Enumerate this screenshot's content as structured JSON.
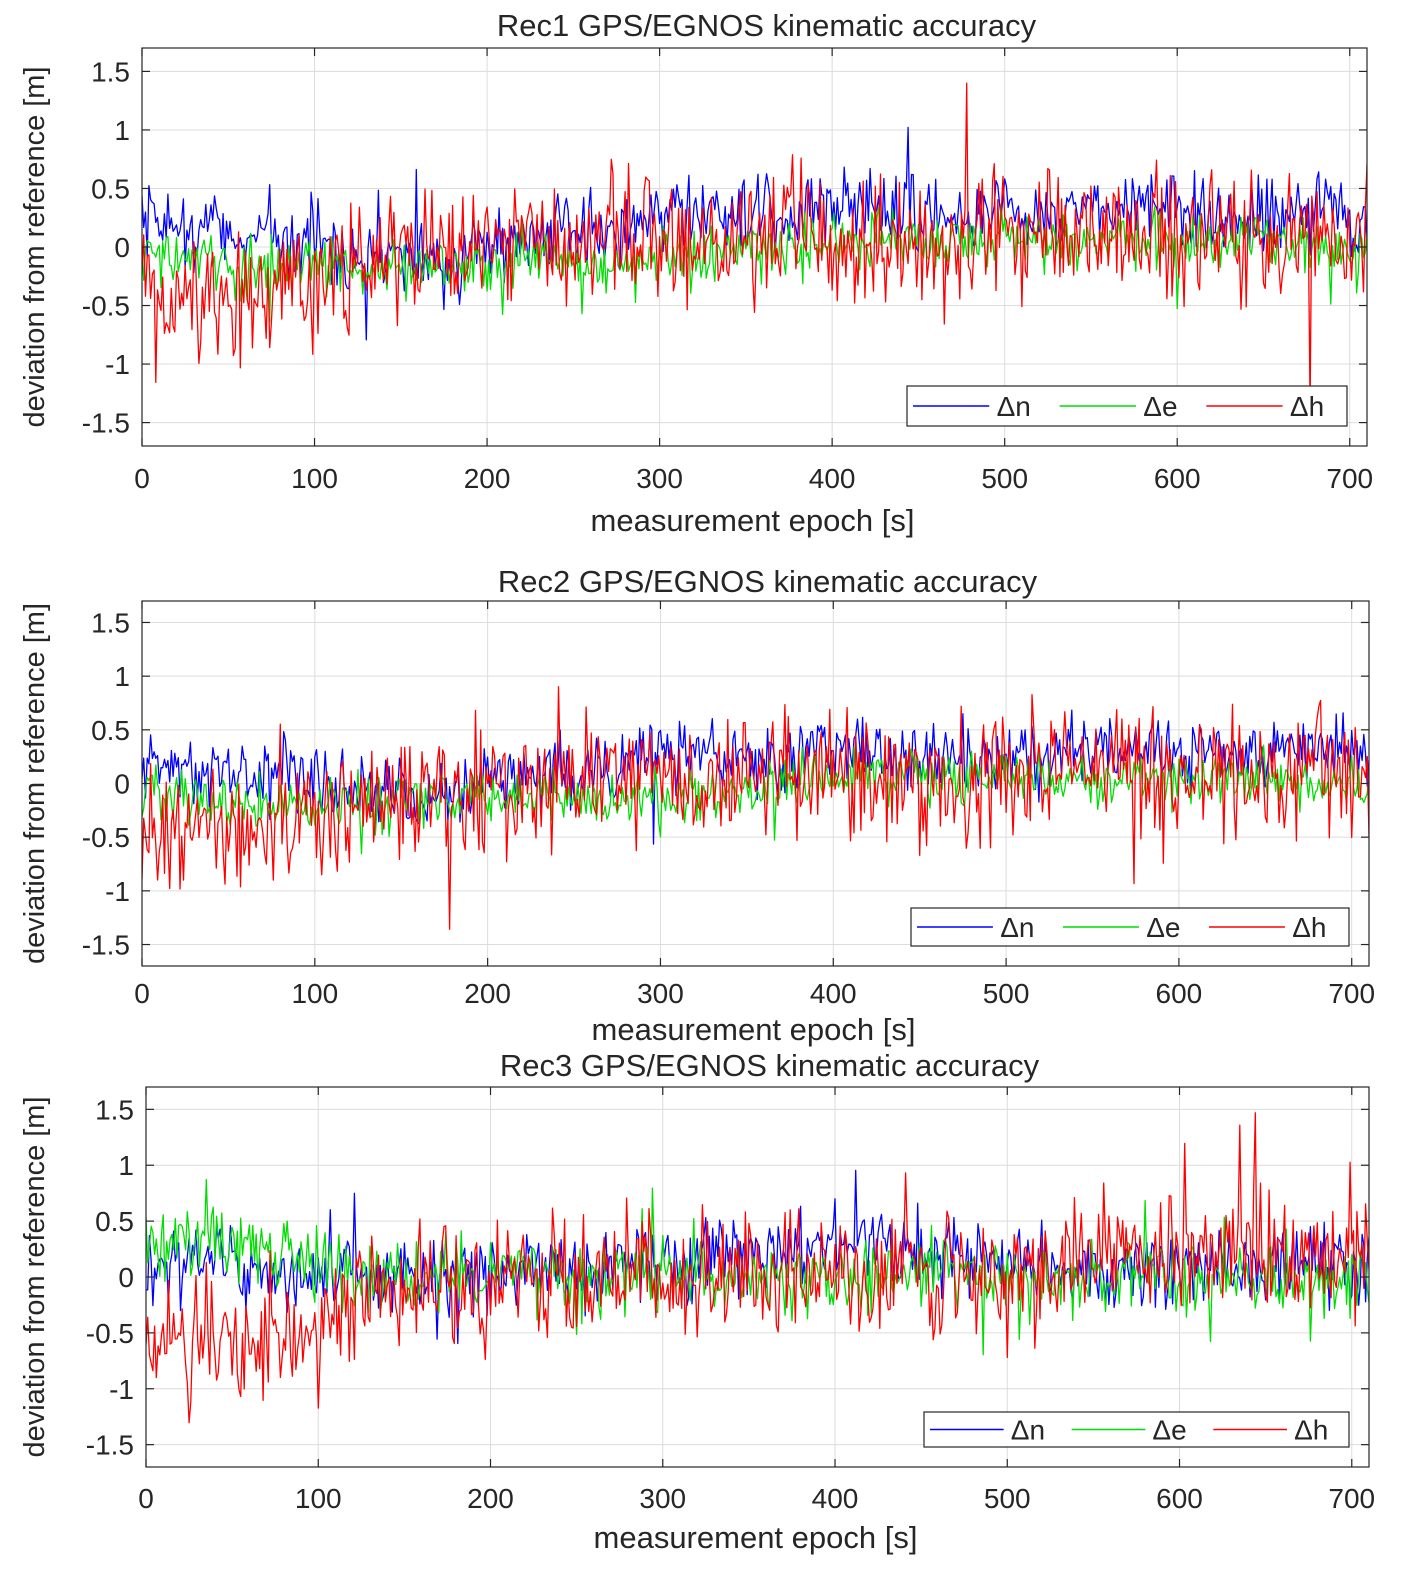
{
  "chart_data": [
    {
      "type": "line",
      "title": "Rec1 GPS/EGNOS kinematic accuracy",
      "xlabel": "measurement epoch [s]",
      "ylabel": "deviation from reference [m]",
      "xlim": [
        0,
        710
      ],
      "ylim": [
        -1.7,
        1.7
      ],
      "xticks": [
        0,
        100,
        200,
        300,
        400,
        500,
        600,
        700
      ],
      "yticks": [
        1.5,
        1,
        0.5,
        0,
        -0.5,
        -1,
        -1.5
      ],
      "ytick_labels": [
        "1.5",
        "1",
        "0.5",
        "0",
        "-0.5",
        "-1",
        "-1.5"
      ],
      "grid": true,
      "legend_position": "bottom-right",
      "series": [
        {
          "name": "Δn",
          "color": "#0000ff",
          "x": [
            0,
            20,
            40,
            60,
            80,
            100,
            120,
            140,
            160,
            180,
            200,
            220,
            240,
            260,
            280,
            300,
            320,
            340,
            360,
            380,
            400,
            420,
            440,
            460,
            480,
            500,
            520,
            540,
            560,
            580,
            600,
            620,
            640,
            660,
            680,
            700,
            710
          ],
          "values": [
            0.15,
            0.2,
            0.15,
            0.1,
            0.1,
            0.05,
            0.0,
            -0.05,
            -0.1,
            -0.1,
            0.0,
            0.1,
            0.15,
            0.1,
            0.2,
            0.3,
            0.3,
            0.25,
            0.2,
            0.35,
            0.3,
            0.3,
            0.3,
            0.25,
            0.25,
            0.3,
            0.25,
            0.3,
            0.3,
            0.35,
            0.3,
            0.3,
            0.25,
            0.3,
            0.35,
            0.3,
            0.2
          ]
        },
        {
          "name": "Δe",
          "color": "#00dd00",
          "x": [
            0,
            20,
            40,
            60,
            80,
            100,
            120,
            140,
            160,
            180,
            200,
            220,
            240,
            260,
            280,
            300,
            320,
            340,
            360,
            380,
            400,
            420,
            440,
            460,
            480,
            500,
            520,
            540,
            560,
            580,
            600,
            620,
            640,
            660,
            680,
            700,
            710
          ],
          "values": [
            -0.05,
            -0.1,
            -0.15,
            -0.2,
            -0.15,
            -0.15,
            -0.2,
            -0.2,
            -0.15,
            -0.15,
            -0.15,
            -0.1,
            -0.1,
            -0.15,
            -0.15,
            -0.1,
            -0.1,
            -0.05,
            -0.05,
            0.0,
            0.05,
            0.05,
            0.1,
            0.05,
            0.05,
            0.1,
            0.05,
            0.05,
            0.05,
            0.05,
            0.0,
            0.05,
            0.05,
            0.05,
            0.0,
            0.0,
            -0.05
          ]
        },
        {
          "name": "Δh",
          "color": "#ff0000",
          "x": [
            0,
            20,
            40,
            60,
            80,
            100,
            120,
            140,
            160,
            180,
            200,
            220,
            240,
            260,
            280,
            300,
            320,
            340,
            360,
            380,
            400,
            420,
            440,
            460,
            480,
            500,
            520,
            540,
            560,
            580,
            600,
            620,
            640,
            660,
            680,
            700,
            710
          ],
          "values": [
            -0.45,
            -0.5,
            -0.4,
            -0.4,
            -0.35,
            -0.3,
            -0.2,
            -0.1,
            -0.05,
            -0.1,
            -0.05,
            0.0,
            0.05,
            0.0,
            0.05,
            0.1,
            0.05,
            0.05,
            0.05,
            0.15,
            0.1,
            0.05,
            0.05,
            0.0,
            0.05,
            0.1,
            0.1,
            0.15,
            0.1,
            0.15,
            0.15,
            0.1,
            0.1,
            0.05,
            0.1,
            0.05,
            0.05
          ]
        }
      ]
    },
    {
      "type": "line",
      "title": "Rec2 GPS/EGNOS kinematic accuracy",
      "xlabel": "measurement epoch [s]",
      "ylabel": "deviation from reference [m]",
      "xlim": [
        0,
        710
      ],
      "ylim": [
        -1.7,
        1.7
      ],
      "xticks": [
        0,
        100,
        200,
        300,
        400,
        500,
        600,
        700
      ],
      "yticks": [
        1.5,
        1,
        0.5,
        0,
        -0.5,
        -1,
        -1.5
      ],
      "ytick_labels": [
        "1.5",
        "1",
        "0.5",
        "0",
        "-0.5",
        "-1",
        "-1.5"
      ],
      "grid": true,
      "legend_position": "bottom-right",
      "series": [
        {
          "name": "Δn",
          "color": "#0000ff",
          "x": [
            0,
            20,
            40,
            60,
            80,
            100,
            120,
            140,
            160,
            180,
            200,
            220,
            240,
            260,
            280,
            300,
            320,
            340,
            360,
            380,
            400,
            420,
            440,
            460,
            480,
            500,
            520,
            540,
            560,
            580,
            600,
            620,
            640,
            660,
            680,
            700,
            710
          ],
          "values": [
            0.15,
            0.2,
            0.15,
            0.1,
            0.1,
            0.05,
            0.0,
            -0.05,
            -0.1,
            -0.1,
            0.0,
            0.1,
            0.15,
            0.1,
            0.2,
            0.3,
            0.3,
            0.25,
            0.2,
            0.35,
            0.3,
            0.3,
            0.3,
            0.25,
            0.25,
            0.3,
            0.25,
            0.3,
            0.3,
            0.35,
            0.3,
            0.3,
            0.25,
            0.3,
            0.35,
            0.3,
            0.2
          ]
        },
        {
          "name": "Δe",
          "color": "#00dd00",
          "x": [
            0,
            20,
            40,
            60,
            80,
            100,
            120,
            140,
            160,
            180,
            200,
            220,
            240,
            260,
            280,
            300,
            320,
            340,
            360,
            380,
            400,
            420,
            440,
            460,
            480,
            500,
            520,
            540,
            560,
            580,
            600,
            620,
            640,
            660,
            680,
            700,
            710
          ],
          "values": [
            -0.05,
            -0.1,
            -0.15,
            -0.2,
            -0.15,
            -0.15,
            -0.2,
            -0.2,
            -0.15,
            -0.15,
            -0.15,
            -0.1,
            -0.1,
            -0.15,
            -0.15,
            -0.1,
            -0.1,
            -0.05,
            -0.05,
            0.0,
            0.05,
            0.05,
            0.1,
            0.05,
            0.05,
            0.1,
            0.05,
            0.05,
            0.05,
            0.05,
            0.0,
            0.05,
            0.05,
            0.05,
            0.0,
            0.0,
            -0.05
          ]
        },
        {
          "name": "Δh",
          "color": "#ff0000",
          "x": [
            0,
            20,
            40,
            60,
            80,
            100,
            120,
            140,
            160,
            180,
            200,
            220,
            240,
            260,
            280,
            300,
            320,
            340,
            360,
            380,
            400,
            420,
            440,
            460,
            480,
            500,
            520,
            540,
            560,
            580,
            600,
            620,
            640,
            660,
            680,
            700,
            710
          ],
          "values": [
            -0.45,
            -0.5,
            -0.4,
            -0.4,
            -0.35,
            -0.3,
            -0.2,
            -0.1,
            -0.05,
            -0.1,
            -0.05,
            0.0,
            0.05,
            0.0,
            0.05,
            0.1,
            0.05,
            0.05,
            0.05,
            0.15,
            0.1,
            0.05,
            0.05,
            0.0,
            0.05,
            0.1,
            0.1,
            0.15,
            0.1,
            0.15,
            0.15,
            0.1,
            0.1,
            0.05,
            0.1,
            0.05,
            0.05
          ]
        }
      ]
    },
    {
      "type": "line",
      "title": "Rec3 GPS/EGNOS kinematic accuracy",
      "xlabel": "measurement epoch [s]",
      "ylabel": "deviation from reference [m]",
      "xlim": [
        0,
        710
      ],
      "ylim": [
        -1.7,
        1.7
      ],
      "xticks": [
        0,
        100,
        200,
        300,
        400,
        500,
        600,
        700
      ],
      "yticks": [
        1.5,
        1,
        0.5,
        0,
        -0.5,
        -1,
        -1.5
      ],
      "ytick_labels": [
        "1.5",
        "1",
        "0.5",
        "0",
        "-0.5",
        "-1",
        "-1.5"
      ],
      "grid": true,
      "legend_position": "bottom-right",
      "series": [
        {
          "name": "Δn",
          "color": "#0000ff",
          "x": [
            0,
            20,
            40,
            60,
            80,
            100,
            120,
            140,
            160,
            180,
            200,
            220,
            240,
            260,
            280,
            300,
            320,
            340,
            360,
            380,
            400,
            420,
            440,
            460,
            480,
            500,
            520,
            540,
            560,
            580,
            600,
            620,
            640,
            660,
            680,
            700,
            710
          ],
          "values": [
            0.05,
            0.1,
            0.15,
            0.05,
            0.0,
            0.0,
            0.05,
            0.0,
            -0.05,
            0.0,
            0.05,
            0.1,
            0.1,
            0.1,
            0.15,
            0.15,
            0.2,
            0.2,
            0.25,
            0.25,
            0.3,
            0.3,
            0.25,
            0.25,
            0.2,
            0.15,
            0.1,
            0.1,
            0.1,
            0.05,
            0.05,
            0.05,
            0.1,
            0.1,
            0.05,
            0.1,
            0.1
          ]
        },
        {
          "name": "Δe",
          "color": "#00dd00",
          "x": [
            0,
            20,
            40,
            60,
            80,
            100,
            120,
            140,
            160,
            180,
            200,
            220,
            240,
            260,
            280,
            300,
            320,
            340,
            360,
            380,
            400,
            420,
            440,
            460,
            480,
            500,
            520,
            540,
            560,
            580,
            600,
            620,
            640,
            660,
            680,
            700,
            710
          ],
          "values": [
            0.3,
            0.3,
            0.35,
            0.3,
            0.25,
            0.1,
            0.05,
            0.0,
            0.0,
            0.05,
            0.05,
            0.05,
            0.0,
            0.0,
            0.0,
            0.0,
            0.0,
            -0.05,
            0.0,
            0.0,
            0.0,
            0.05,
            0.05,
            0.05,
            0.0,
            0.0,
            0.0,
            0.0,
            0.0,
            0.0,
            0.0,
            0.0,
            0.0,
            0.05,
            0.0,
            0.0,
            0.0
          ]
        },
        {
          "name": "Δh",
          "color": "#ff0000",
          "x": [
            0,
            20,
            40,
            60,
            80,
            100,
            120,
            140,
            160,
            180,
            200,
            220,
            240,
            260,
            280,
            300,
            320,
            340,
            360,
            380,
            400,
            420,
            440,
            460,
            480,
            500,
            520,
            540,
            560,
            580,
            600,
            620,
            640,
            660,
            680,
            700,
            710
          ],
          "values": [
            -0.6,
            -0.7,
            -0.55,
            -0.5,
            -0.5,
            -0.35,
            -0.25,
            -0.15,
            -0.1,
            -0.1,
            -0.05,
            0.0,
            0.0,
            0.0,
            0.05,
            0.05,
            0.0,
            0.0,
            -0.05,
            0.0,
            -0.05,
            -0.05,
            0.0,
            0.0,
            0.0,
            0.05,
            0.1,
            0.2,
            0.25,
            0.2,
            0.2,
            0.2,
            0.25,
            0.2,
            0.2,
            0.25,
            0.2
          ]
        }
      ]
    }
  ]
}
